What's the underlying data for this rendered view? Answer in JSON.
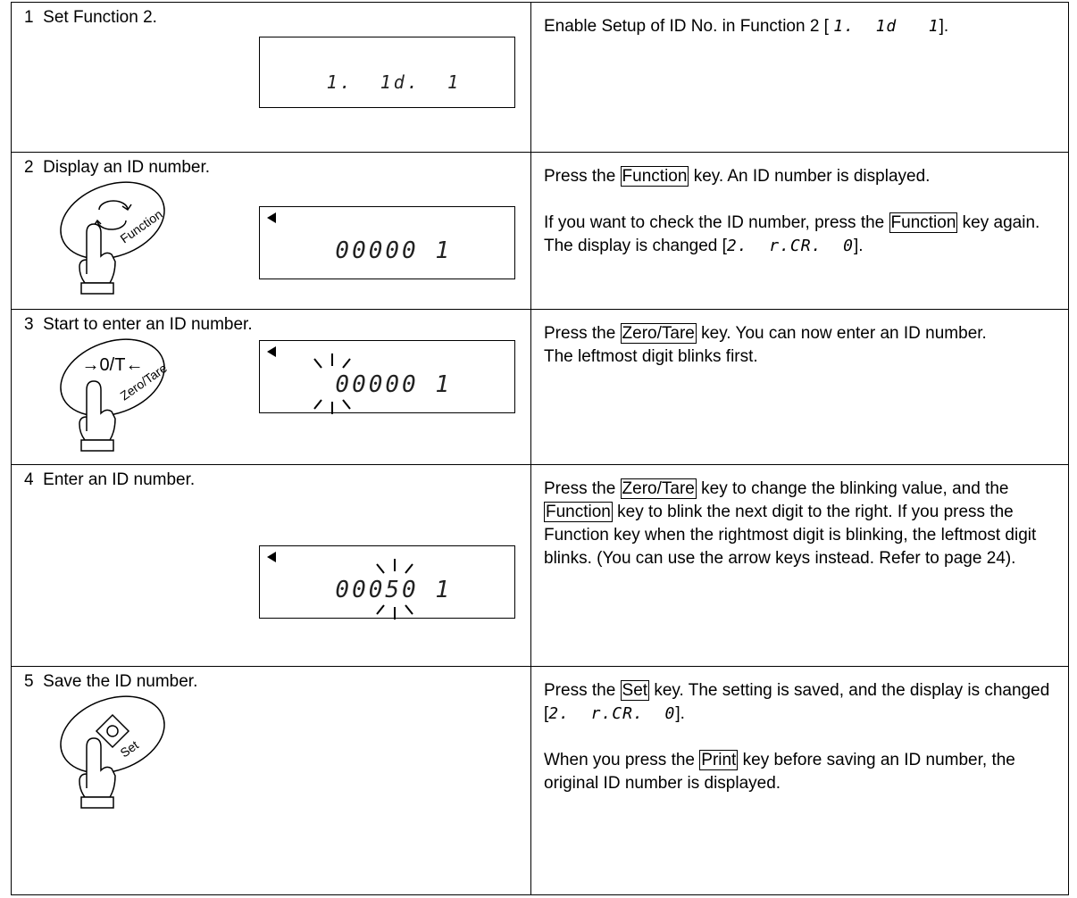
{
  "steps": [
    {
      "number": "1",
      "title": "Set Function 2.",
      "display": "1.  1d.  1",
      "paragraphs": [
        [
          {
            "text": "Enable Setup of ID No. in Function 2 [ "
          },
          {
            "lcd": "1.  1d   1"
          },
          {
            "text": "]."
          }
        ]
      ]
    },
    {
      "number": "2",
      "title": "Display an ID number.",
      "display": "00000 1",
      "icon": {
        "label": "Function"
      },
      "paragraphs": [
        [
          {
            "text": "Press the "
          },
          {
            "key": "Function"
          },
          {
            "text": " key. An ID number is displayed."
          }
        ],
        [
          {
            "text": "If you want to check the ID number, press the "
          },
          {
            "key": "Function"
          },
          {
            "text": " key again. The display is changed ["
          },
          {
            "lcd": "2.  r.CR.  0"
          },
          {
            "text": "]."
          }
        ]
      ]
    },
    {
      "number": "3",
      "title": "Start to enter an ID number.",
      "display": "00000 1",
      "icon": {
        "symbol": "→0/T←",
        "label": "Zero/Tare"
      },
      "paragraphs": [
        [
          {
            "text": "Press the "
          },
          {
            "key": "Zero/Tare"
          },
          {
            "text": " key. You can now enter an ID number."
          }
        ],
        [
          {
            "text": "The leftmost digit blinks first."
          }
        ]
      ]
    },
    {
      "number": "4",
      "title": "Enter an ID number.",
      "display": "00050 1",
      "paragraphs": [
        [
          {
            "text": "Press the "
          },
          {
            "key": "Zero/Tare"
          },
          {
            "text": " key to change the blinking value, and the "
          },
          {
            "key": "Function"
          },
          {
            "text": " key to blink the next digit to the right. If you press the Function key when the rightmost digit is blinking, the leftmost digit blinks. (You can use the arrow keys instead. Refer to page 24)."
          }
        ]
      ]
    },
    {
      "number": "5",
      "title": "Save the ID number.",
      "icon": {
        "label": "Set"
      },
      "paragraphs": [
        [
          {
            "text": "Press the "
          },
          {
            "key": "Set"
          },
          {
            "text": " key. The setting is saved, and the display is changed ["
          },
          {
            "lcd": "2.  r.CR.  0"
          },
          {
            "text": "]."
          }
        ],
        [
          {
            "text": "When you press the "
          },
          {
            "key": "Print"
          },
          {
            "text": " key before saving an ID number, the original ID number is displayed."
          }
        ]
      ]
    }
  ]
}
